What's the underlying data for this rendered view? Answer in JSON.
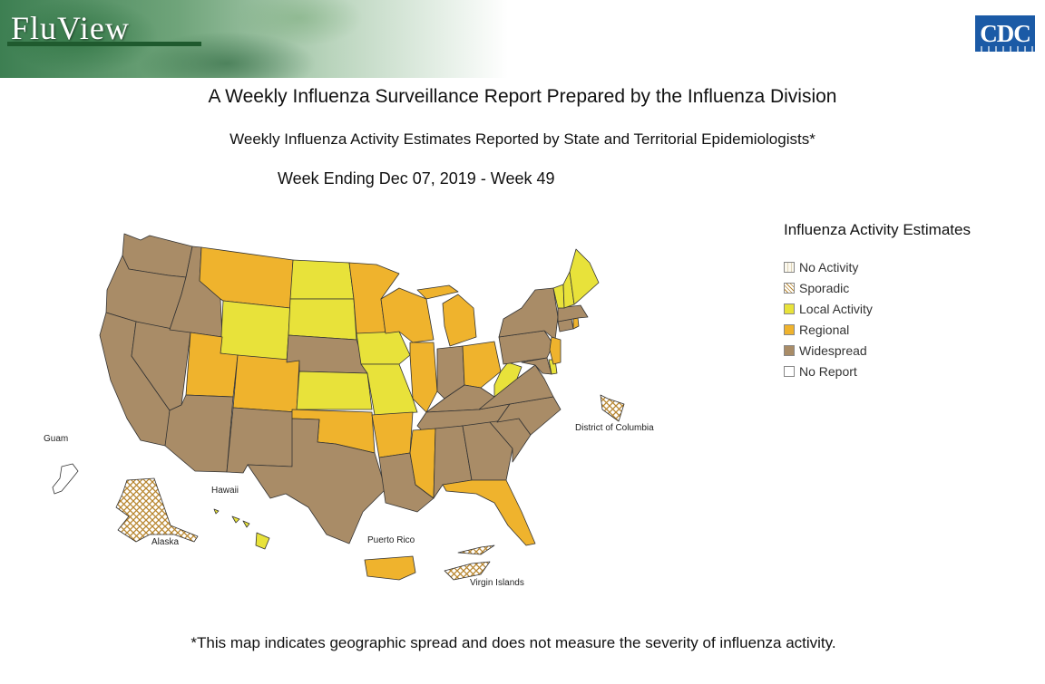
{
  "header": {
    "brand": "FluView",
    "logo_text": "CDC"
  },
  "titles": {
    "main": "A Weekly Influenza Surveillance Report Prepared by the Influenza Division",
    "sub": "Weekly Influenza Activity Estimates Reported by State and Territorial Epidemiologists*",
    "week": "Week Ending Dec 07, 2019 - Week 49"
  },
  "legend": {
    "title": "Influenza Activity Estimates",
    "items": [
      {
        "label": "No Activity",
        "color": "#fbf8ee",
        "pattern": "grid-light"
      },
      {
        "label": "Sporadic",
        "color": "#ffffff",
        "pattern": "crosshatch"
      },
      {
        "label": "Local Activity",
        "color": "#e8e23a"
      },
      {
        "label": "Regional",
        "color": "#efb32d"
      },
      {
        "label": "Widespread",
        "color": "#a98c67"
      },
      {
        "label": "No Report",
        "color": "#ffffff"
      }
    ]
  },
  "territory_labels": {
    "guam": "Guam",
    "hawaii": "Hawaii",
    "alaska": "Alaska",
    "puerto_rico": "Puerto Rico",
    "virgin_islands": "Virgin Islands",
    "dc": "District of Columbia"
  },
  "activity_by_state": {
    "WA": "Widespread",
    "OR": "Widespread",
    "CA": "Widespread",
    "NV": "Widespread",
    "ID": "Widespread",
    "MT": "Regional",
    "WY": "Local Activity",
    "UT": "Regional",
    "AZ": "Widespread",
    "CO": "Regional",
    "NM": "Widespread",
    "ND": "Local Activity",
    "SD": "Local Activity",
    "NE": "Widespread",
    "KS": "Local Activity",
    "OK": "Regional",
    "TX": "Widespread",
    "MN": "Regional",
    "IA": "Local Activity",
    "MO": "Local Activity",
    "AR": "Regional",
    "LA": "Widespread",
    "WI": "Regional",
    "IL": "Regional",
    "MS": "Regional",
    "MI": "Regional",
    "IN": "Widespread",
    "KY": "Widespread",
    "TN": "Widespread",
    "AL": "Widespread",
    "OH": "Regional",
    "WV": "Local Activity",
    "GA": "Widespread",
    "FL": "Regional",
    "SC": "Widespread",
    "NC": "Widespread",
    "VA": "Widespread",
    "PA": "Widespread",
    "NY": "Widespread",
    "NJ": "Regional",
    "DE": "Local Activity",
    "MD": "Widespread",
    "CT": "Widespread",
    "RI": "Regional",
    "MA": "Widespread",
    "VT": "Local Activity",
    "NH": "Local Activity",
    "ME": "Local Activity",
    "AK": "Sporadic",
    "HI": "Local Activity",
    "PR": "Regional",
    "VI": "Sporadic",
    "DC": "Sporadic",
    "GU": "No Report"
  },
  "footnote": "*This map indicates geographic spread and does not measure the severity of influenza activity."
}
